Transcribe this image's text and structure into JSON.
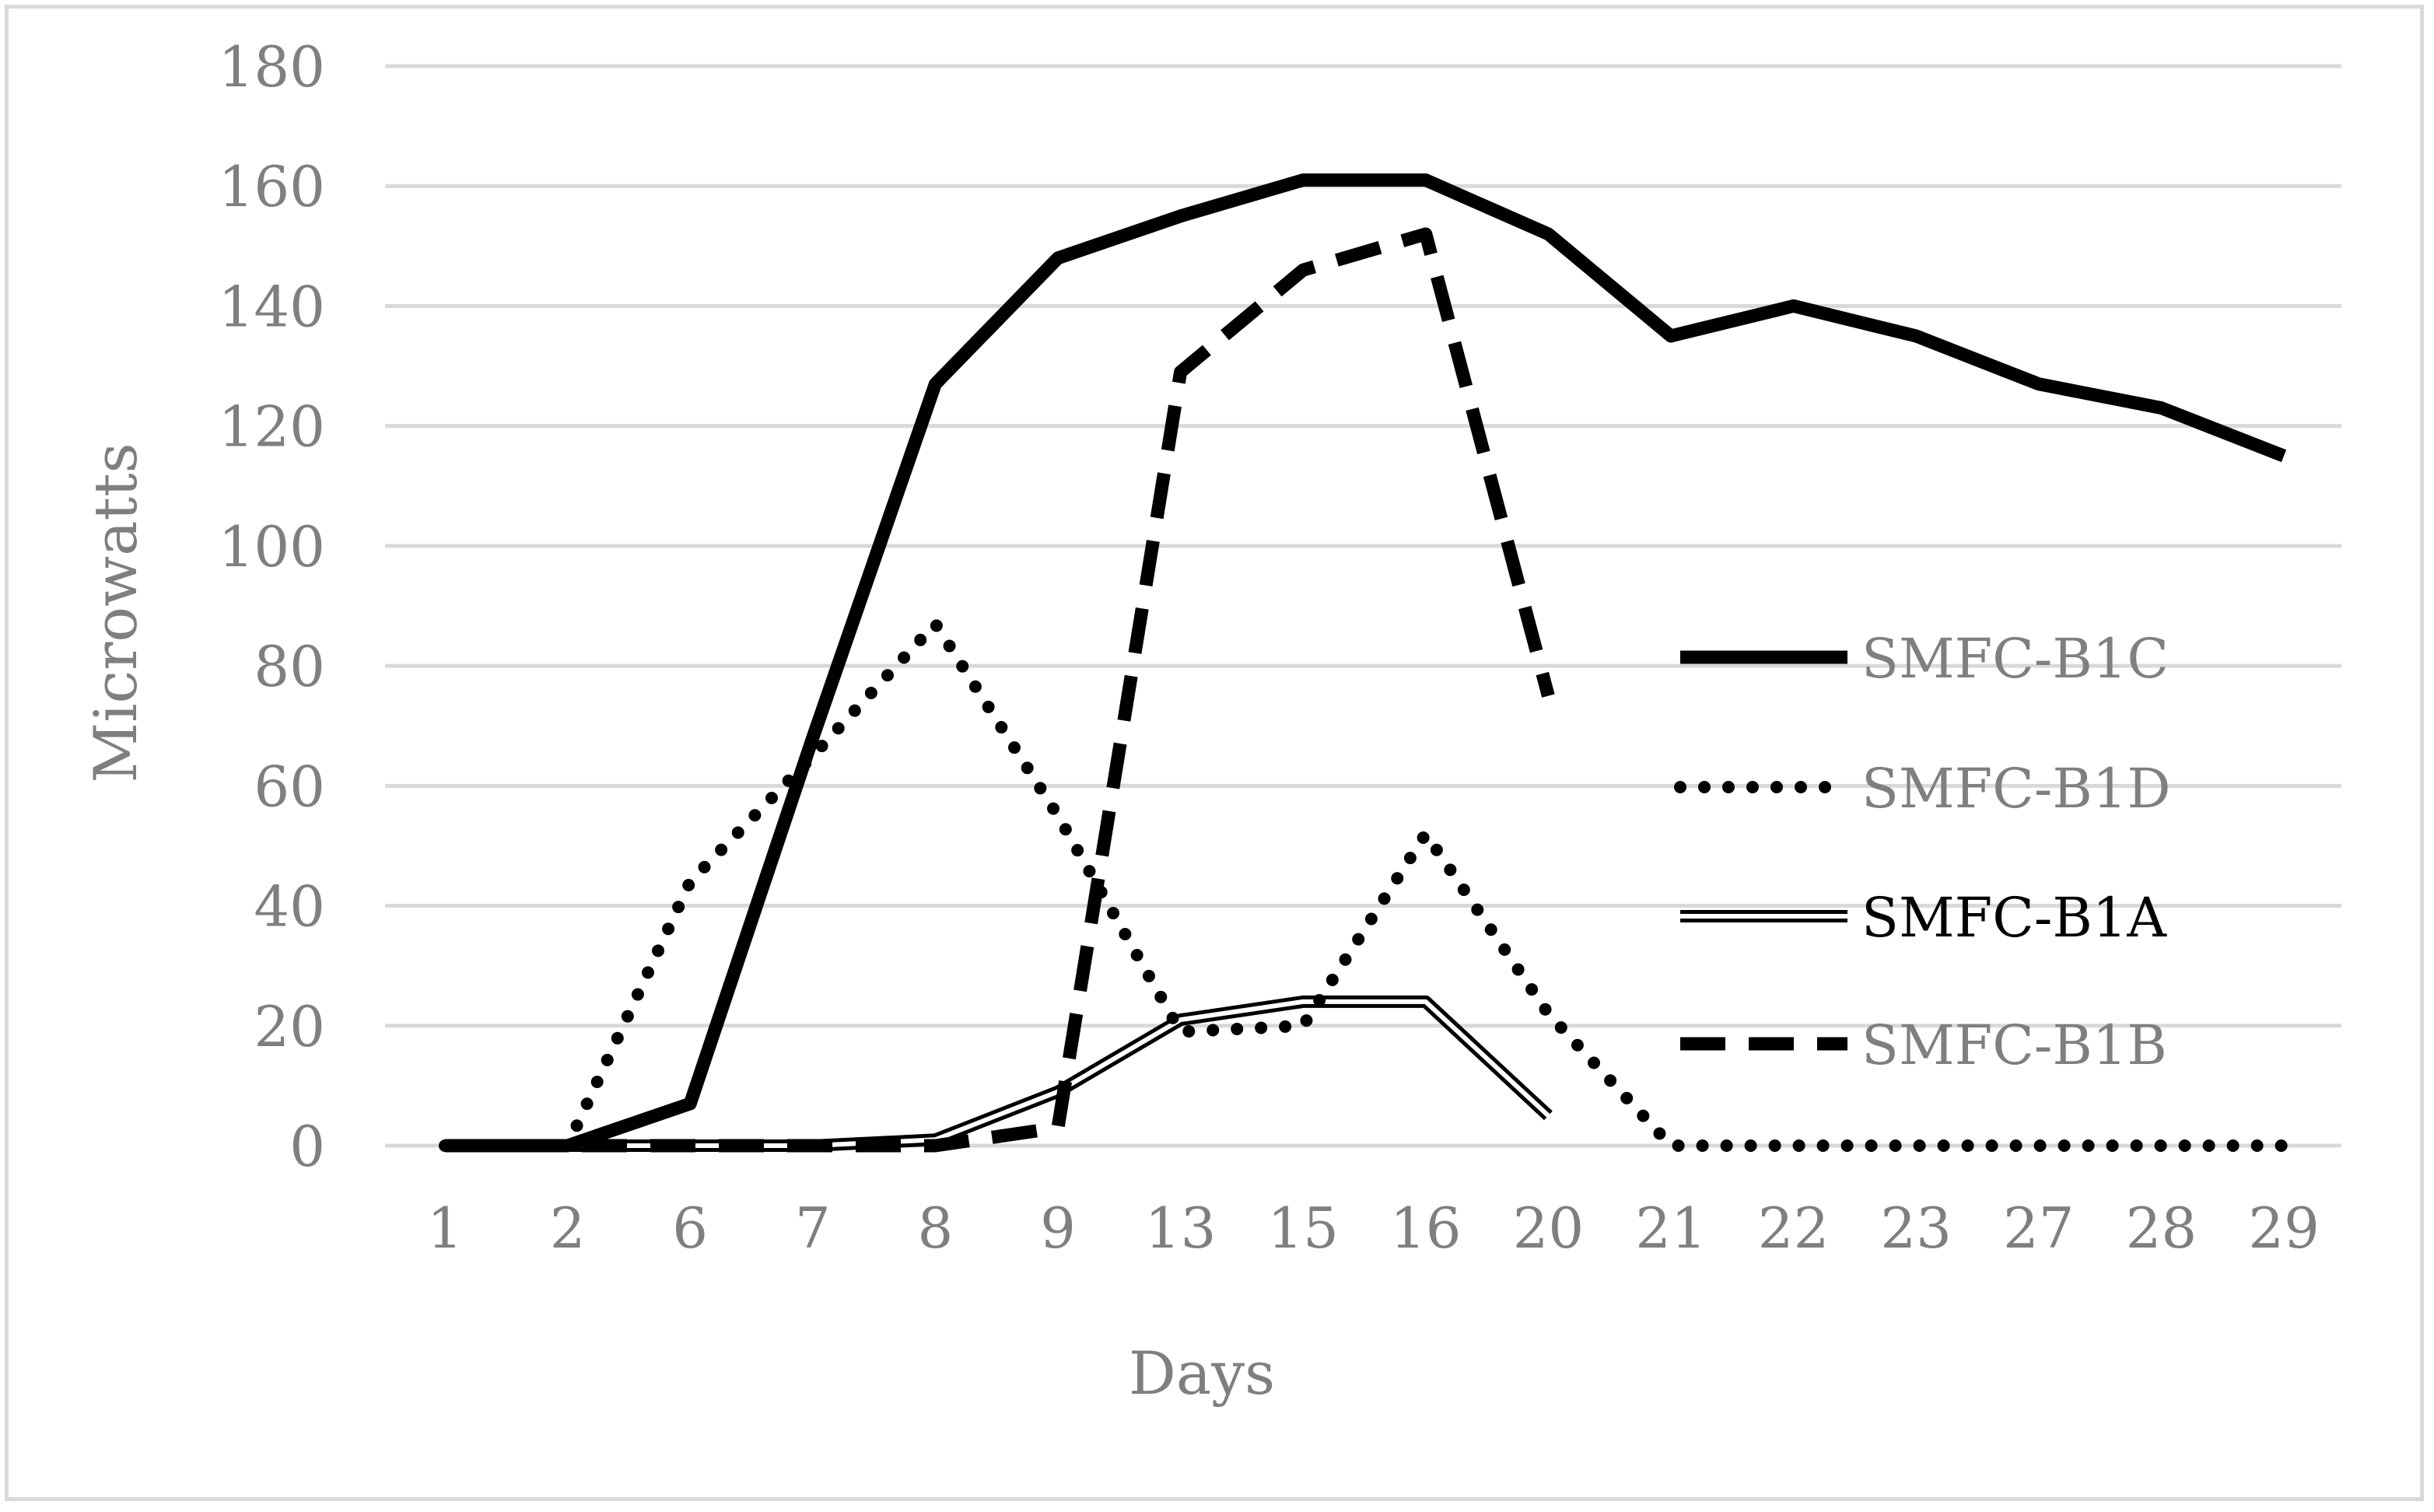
{
  "chart_data": {
    "type": "line",
    "title": "",
    "xlabel": "Days",
    "ylabel": "Microwatts",
    "categories": [
      "1",
      "2",
      "6",
      "7",
      "8",
      "9",
      "13",
      "15",
      "16",
      "20",
      "21",
      "22",
      "23",
      "27",
      "28",
      "29"
    ],
    "ylim": [
      0,
      180
    ],
    "yticks": [
      0,
      20,
      40,
      60,
      80,
      100,
      120,
      140,
      160,
      180
    ],
    "grid": true,
    "legend_position": "right",
    "series": [
      {
        "name": "SMFC-B1C",
        "style": "solid-thick",
        "values": [
          0,
          0,
          7,
          68,
          127,
          148,
          155,
          161,
          161,
          152,
          135,
          140,
          135,
          127,
          123,
          115
        ]
      },
      {
        "name": "SMFC-B1D",
        "style": "dotted",
        "values": [
          0,
          0,
          44,
          65,
          87,
          55,
          19,
          20,
          52,
          22,
          0,
          0,
          0,
          0,
          0,
          0
        ]
      },
      {
        "name": "SMFC-B1A",
        "style": "double",
        "values": [
          0,
          0,
          0,
          0,
          1,
          9,
          21,
          24,
          24,
          5,
          null,
          null,
          null,
          null,
          null,
          null
        ]
      },
      {
        "name": "SMFC-B1B",
        "style": "dashed",
        "values": [
          0,
          0,
          0,
          0,
          0,
          3,
          129,
          146,
          152,
          75,
          null,
          null,
          null,
          null,
          null,
          null
        ]
      }
    ],
    "colors": {
      "line": "#000000",
      "grid": "#d9d9d9",
      "text": "#7f7f7f",
      "legend_highlight_text": "#000000"
    }
  }
}
